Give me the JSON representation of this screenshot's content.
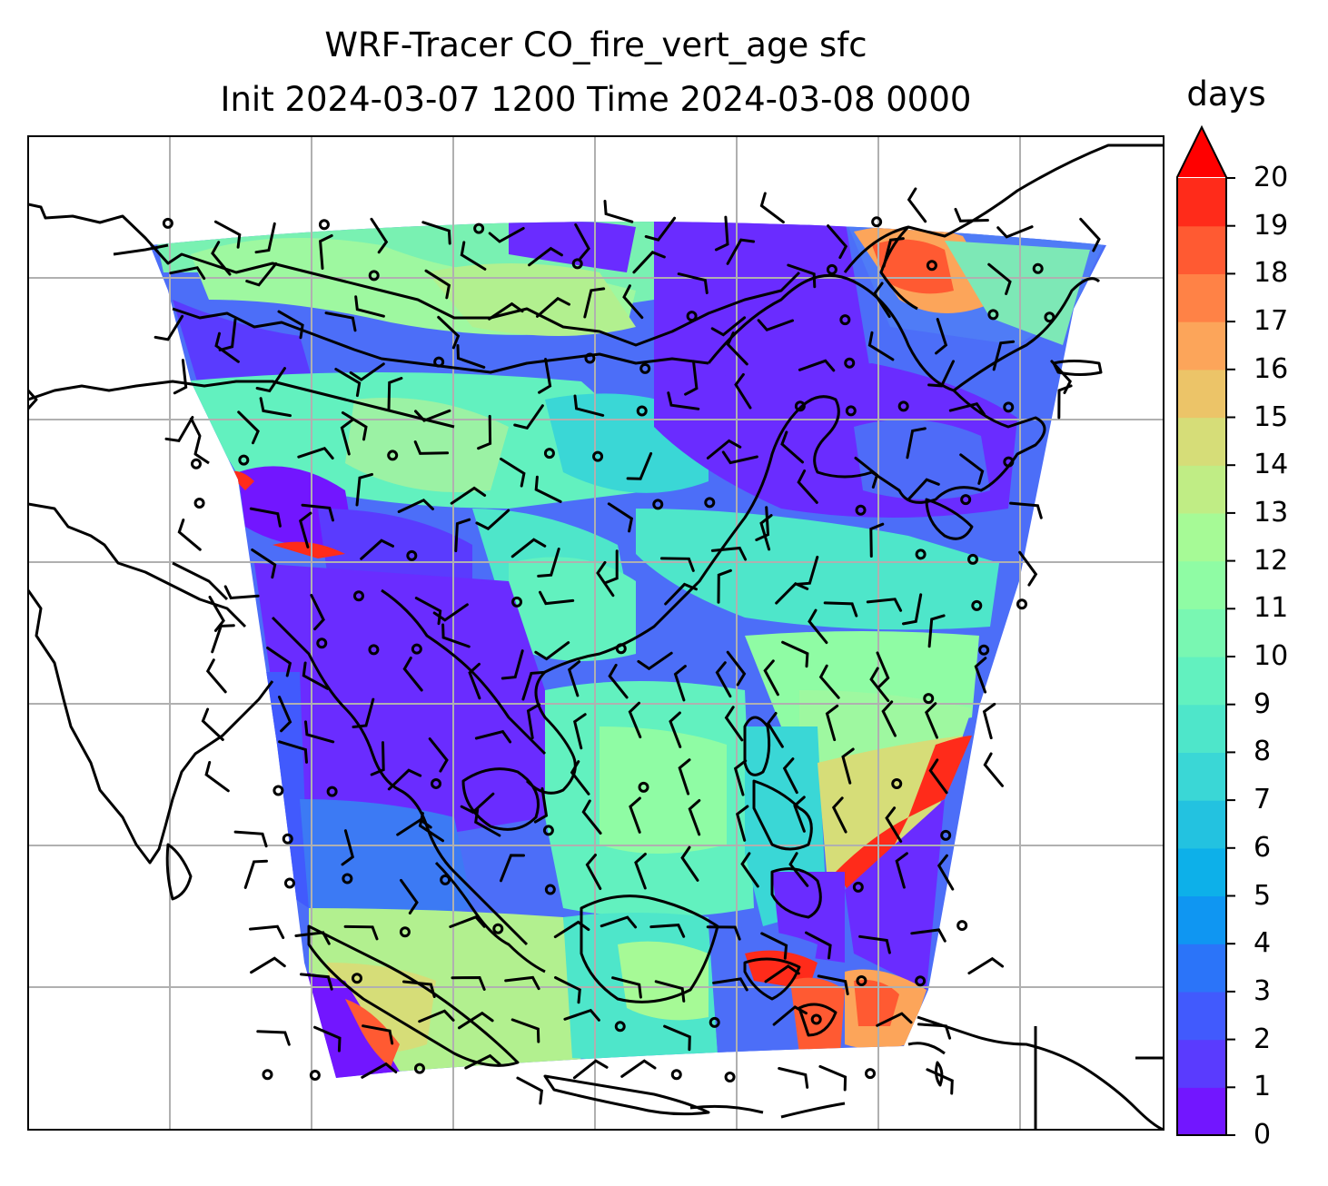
{
  "title": {
    "line1": "WRF-Tracer CO_fire_vert_age sfc",
    "line2": "Init 2024-03-07 1200 Time 2024-03-08 0000"
  },
  "colorbar": {
    "label": "days",
    "ticks": [
      "0",
      "1",
      "2",
      "3",
      "4",
      "5",
      "6",
      "7",
      "8",
      "9",
      "10",
      "11",
      "12",
      "13",
      "14",
      "15",
      "16",
      "17",
      "18",
      "19",
      "20"
    ],
    "extend": "max",
    "colormap": "rainbow",
    "colors": [
      "#7216ff",
      "#5a3bfe",
      "#415afd",
      "#2b74f9",
      "#0f96f2",
      "#0db0e9",
      "#23c2e0",
      "#3ad7d6",
      "#4ee6ca",
      "#62f1bf",
      "#79f7b2",
      "#8ffca4",
      "#a6fa96",
      "#c0ed85",
      "#d6dd78",
      "#ecc468",
      "#fca55a",
      "#ff8246",
      "#ff5a32",
      "#ff2b1a",
      "#ff0000"
    ]
  },
  "map": {
    "field": "CO_fire_vert_age sfc",
    "units": "days",
    "overlays": [
      "coastlines",
      "country borders",
      "wind barbs",
      "lat-lon gridlines"
    ],
    "gridlines": true
  }
}
